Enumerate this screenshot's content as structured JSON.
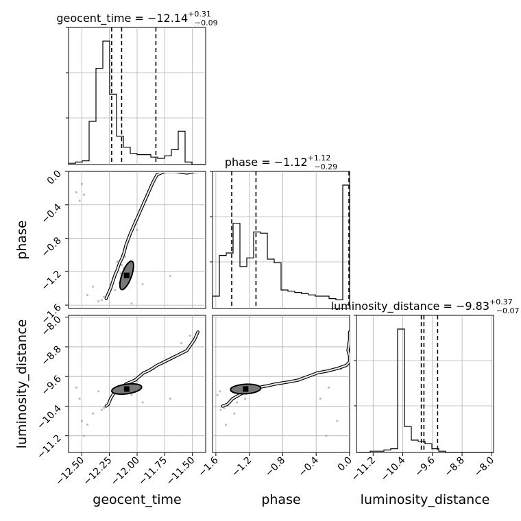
{
  "chart_data": {
    "type": "corner",
    "parameters": [
      "geocent_time",
      "phase",
      "luminosity_distance"
    ],
    "axis_labels": [
      "geocent_time",
      "phase",
      "luminosity_distance"
    ],
    "ranges": [
      [
        -12.62,
        -11.38
      ],
      [
        -1.64,
        0.0
      ],
      [
        -11.65,
        -7.95
      ]
    ],
    "ticks": {
      "geocent_time": [
        -12.5,
        -12.25,
        -12.0,
        -11.75,
        -11.5
      ],
      "phase": [
        -1.6,
        -1.2,
        -0.8,
        -0.4,
        0.0
      ],
      "luminosity_distance": [
        -11.2,
        -10.4,
        -9.6,
        -8.8,
        -8.0
      ]
    },
    "tick_labels": {
      "geocent_time": [
        "−12.50",
        "−12.25",
        "−12.00",
        "−11.75",
        "−11.50"
      ],
      "phase": [
        "−1.6",
        "−1.2",
        "−0.8",
        "−0.4",
        "0.0"
      ],
      "luminosity_distance": [
        "−11.2",
        "−10.4",
        "−9.6",
        "−8.8",
        "−8.0"
      ]
    },
    "titles": [
      {
        "label": "geocent_time",
        "median": "−12.14",
        "upper": "+0.31",
        "lower": "−0.09"
      },
      {
        "label": "phase",
        "median": "−1.12",
        "upper": "+1.12",
        "lower": "−0.29"
      },
      {
        "label": "luminosity_distance",
        "median": "−9.83",
        "upper": "+0.37",
        "lower": "−0.07"
      }
    ],
    "quantiles": {
      "geocent_time": [
        -12.23,
        -12.14,
        -11.83
      ],
      "phase": [
        -1.41,
        -1.12,
        0.0
      ],
      "luminosity_distance": [
        -9.9,
        -9.83,
        -9.46
      ]
    },
    "histograms": {
      "geocent_time": {
        "edges_range": [
          -12.62,
          -11.38
        ],
        "bins": 20,
        "counts": [
          1,
          2,
          3,
          35,
          78,
          100,
          57,
          23,
          14,
          9,
          8,
          8,
          6,
          5,
          7,
          12,
          27,
          2,
          0,
          0
        ]
      },
      "phase": {
        "edges_range": [
          -1.64,
          0.0
        ],
        "bins": 20,
        "counts": [
          10,
          43,
          45,
          69,
          34,
          41,
          62,
          61,
          40,
          37,
          15,
          14,
          13,
          12,
          11,
          10,
          10,
          8,
          7,
          100
        ]
      },
      "luminosity_distance": {
        "edges_range": [
          -11.65,
          -7.95
        ],
        "bins": 20,
        "counts": [
          0,
          0,
          1,
          1,
          2,
          3,
          100,
          21,
          10,
          9,
          7,
          3,
          1,
          0,
          0,
          0,
          0,
          0,
          0,
          0
        ]
      }
    },
    "samples_2d": [
      [
        -12.28,
        -1.52,
        -10.4
      ],
      [
        -12.26,
        -1.46,
        -10.35
      ],
      [
        -12.24,
        -1.4,
        -10.2
      ],
      [
        -12.22,
        -1.32,
        -10.1
      ],
      [
        -12.2,
        -1.24,
        -10.0
      ],
      [
        -12.18,
        -1.18,
        -9.95
      ],
      [
        -12.16,
        -1.1,
        -9.9
      ],
      [
        -12.14,
        -1.05,
        -9.88
      ],
      [
        -12.12,
        -0.98,
        -9.85
      ],
      [
        -12.1,
        -0.88,
        -9.8
      ],
      [
        -12.06,
        -0.74,
        -9.75
      ],
      [
        -12.02,
        -0.62,
        -9.7
      ],
      [
        -11.98,
        -0.5,
        -9.6
      ],
      [
        -11.94,
        -0.38,
        -9.5
      ],
      [
        -11.9,
        -0.26,
        -9.45
      ],
      [
        -11.86,
        -0.14,
        -9.38
      ],
      [
        -11.82,
        -0.04,
        -9.3
      ],
      [
        -11.75,
        0.0,
        -9.2
      ],
      [
        -11.65,
        0.0,
        -9.05
      ],
      [
        -11.55,
        -0.02,
        -8.9
      ],
      [
        -11.48,
        0.0,
        -8.6
      ],
      [
        -11.45,
        0.0,
        -8.4
      ],
      [
        -12.55,
        -0.25,
        -9.9
      ],
      [
        -12.52,
        -0.35,
        -10.2
      ],
      [
        -12.5,
        -0.15,
        -10.8
      ],
      [
        -12.48,
        -0.28,
        -11.2
      ],
      [
        -12.4,
        -1.38,
        -10.6
      ],
      [
        -12.45,
        -1.48,
        -10.9
      ],
      [
        -12.32,
        -1.54,
        -10.5
      ],
      [
        -11.95,
        -1.35,
        -10.3
      ],
      [
        -12.05,
        -1.58,
        -10.1
      ],
      [
        -11.7,
        -1.25,
        -10.2
      ],
      [
        -12.2,
        -1.42,
        -9.92
      ],
      [
        -12.15,
        -1.22,
        -9.9
      ],
      [
        -12.12,
        -1.15,
        -9.87
      ],
      [
        -12.18,
        -1.08,
        -9.9
      ],
      [
        -12.13,
        -1.27,
        -9.86
      ],
      [
        -12.16,
        -1.33,
        -9.91
      ],
      [
        -12.11,
        -1.02,
        -9.84
      ],
      [
        -12.14,
        -1.12,
        -9.88
      ],
      [
        -11.6,
        -0.02,
        -8.7
      ],
      [
        -11.52,
        0.0,
        -8.5
      ],
      [
        -12.35,
        -1.55,
        -10.0
      ],
      [
        -12.3,
        -1.5,
        -10.45
      ],
      [
        -12.0,
        -0.7,
        -9.72
      ],
      [
        -11.85,
        -0.1,
        -9.4
      ],
      [
        -12.08,
        -0.85,
        -9.78
      ],
      [
        -12.22,
        -1.28,
        -10.05
      ]
    ]
  }
}
